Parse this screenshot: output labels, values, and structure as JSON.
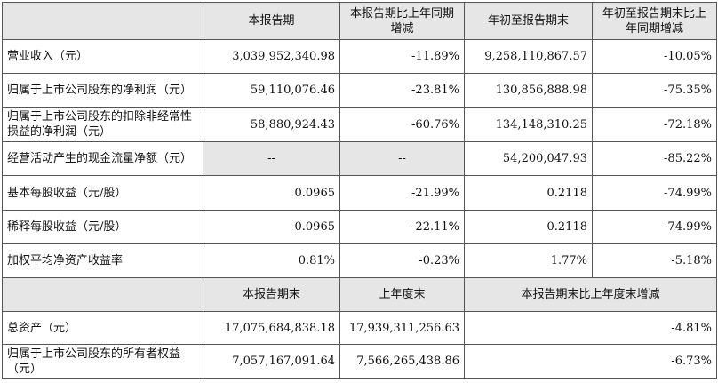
{
  "header": [
    "",
    "本报告期",
    "本报告期比上年同期增减",
    "年初至报告期末",
    "年初至报告期末比上年同期增减"
  ],
  "rows": [
    {
      "label": "营业收入（元）",
      "cells": [
        "3,039,952,340.98",
        "-11.89%",
        "9,258,110,867.57",
        "-10.05%"
      ]
    },
    {
      "label": "归属于上市公司股东的净利润（元）",
      "cells": [
        "59,110,076.46",
        "-23.81%",
        "130,856,888.98",
        "-75.35%"
      ]
    },
    {
      "label": "归属于上市公司股东的扣除非经常性损益的净利润（元）",
      "cells": [
        "58,880,924.43",
        "-60.76%",
        "134,148,310.25",
        "-72.18%"
      ]
    },
    {
      "label": "经营活动产生的现金流量净额（元）",
      "cells": [
        "--",
        "--",
        "54,200,047.93",
        "-85.22%"
      ]
    },
    {
      "label": "基本每股收益（元/股）",
      "cells": [
        "0.0965",
        "-21.99%",
        "0.2118",
        "-74.99%"
      ]
    },
    {
      "label": "稀释每股收益（元/股）",
      "cells": [
        "0.0965",
        "-22.11%",
        "0.2118",
        "-74.99%"
      ]
    },
    {
      "label": "加权平均净资产收益率",
      "cells": [
        "0.81%",
        "-0.23%",
        "1.77%",
        "-5.18%"
      ]
    }
  ],
  "header2": [
    "",
    "本报告期末",
    "上年度末",
    "本报告期末比上年度末增减"
  ],
  "rows2": [
    {
      "label": "总资产（元）",
      "cells": [
        "17,075,684,838.18",
        "17,939,311,256.63",
        "-4.81%"
      ]
    },
    {
      "label": "归属于上市公司股东的所有者权益（元）",
      "cells": [
        "7,057,167,091.64",
        "7,566,265,438.86",
        "-6.73%"
      ]
    }
  ]
}
